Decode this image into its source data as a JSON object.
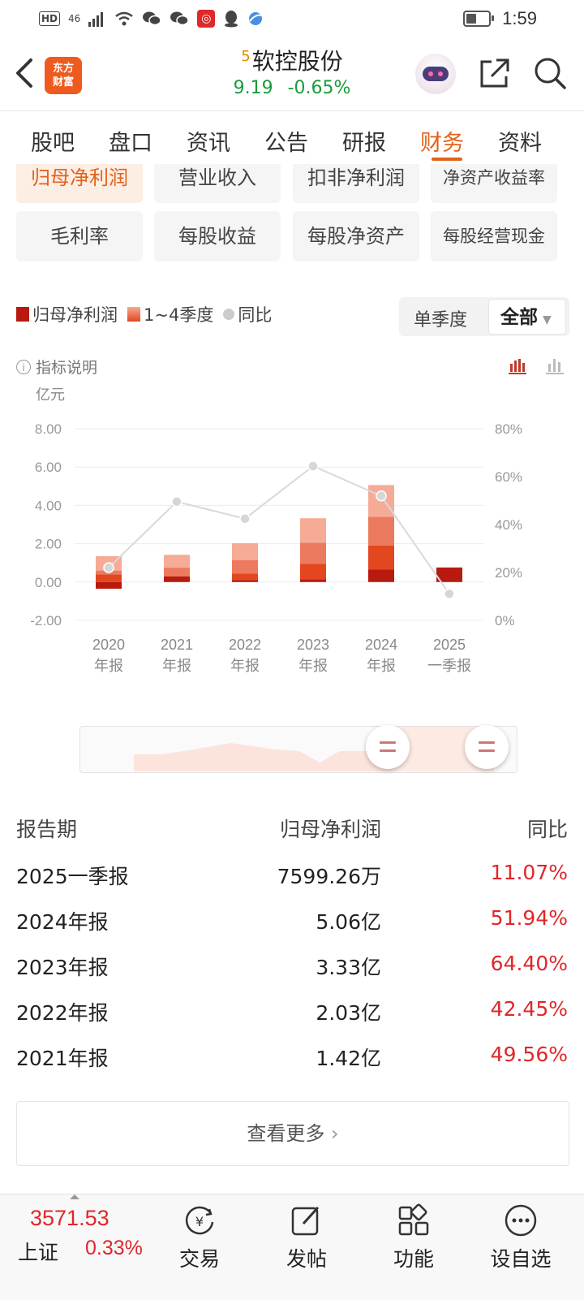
{
  "status_bar": {
    "hd": "HD",
    "network": "46",
    "time": "1:59",
    "battery_level": 0.45
  },
  "header": {
    "logo_line1": "东方",
    "logo_line2": "财富",
    "stock_superscript": "5",
    "stock_name": "软控股份",
    "price": "9.19",
    "change_pct": "-0.65%"
  },
  "tabs": [
    {
      "label": "股吧"
    },
    {
      "label": "盘口"
    },
    {
      "label": "资讯"
    },
    {
      "label": "公告"
    },
    {
      "label": "研报"
    },
    {
      "label": "财务",
      "active": true
    },
    {
      "label": "资料"
    }
  ],
  "metric_chips": [
    {
      "label": "归母净利润",
      "active": true
    },
    {
      "label": "营业收入"
    },
    {
      "label": "扣非净利润"
    },
    {
      "label": "净资产收益率"
    },
    {
      "label": "毛利率"
    },
    {
      "label": "每股收益"
    },
    {
      "label": "每股净资产"
    },
    {
      "label": "每股经营现金"
    }
  ],
  "legend": {
    "series1": "归母净利润",
    "series2": "1~4季度",
    "series3": "同比"
  },
  "period_toggle": {
    "option1": "单季度",
    "option2": "全部",
    "selected": "全部"
  },
  "indicator_note": "指标说明",
  "colors": {
    "accent": "#e2621b",
    "up_red": "#e0262b",
    "down_green": "#1a9b3c",
    "q1": "#b81a10",
    "q2": "#e2471f",
    "q3": "#ec7a5e",
    "q4": "#f6ab96",
    "line": "#d9d9d9"
  },
  "chart_data": {
    "type": "bar",
    "stacked": true,
    "y_unit": "亿元",
    "ylim": [
      -2,
      8
    ],
    "y_ticks": [
      "8.00",
      "6.00",
      "4.00",
      "2.00",
      "0.00",
      "-2.00"
    ],
    "y2_ticks": [
      "80%",
      "60%",
      "40%",
      "20%",
      "0%"
    ],
    "y2lim": [
      0,
      80
    ],
    "categories": [
      {
        "l1": "2020",
        "l2": "年报"
      },
      {
        "l1": "2021",
        "l2": "年报"
      },
      {
        "l1": "2022",
        "l2": "年报"
      },
      {
        "l1": "2023",
        "l2": "年报"
      },
      {
        "l1": "2024",
        "l2": "年报"
      },
      {
        "l1": "2025",
        "l2": "一季报"
      }
    ],
    "series": [
      {
        "values": [
          -0.35,
          0.3,
          0.1,
          0.15,
          0.65,
          0.76
        ]
      },
      {
        "values": [
          0.4,
          0.0,
          0.35,
          0.8,
          1.25,
          0
        ]
      },
      {
        "values": [
          0.2,
          0.45,
          0.7,
          1.1,
          1.5,
          0
        ]
      },
      {
        "values": [
          0.75,
          0.67,
          0.88,
          1.28,
          1.66,
          0
        ]
      }
    ],
    "yoy_pct": [
      22,
      49.56,
      42.45,
      64.4,
      51.94,
      11.07
    ],
    "grid": true
  },
  "table": {
    "headers": [
      "报告期",
      "归母净利润",
      "同比"
    ],
    "rows": [
      [
        "2025一季报",
        "7599.26万",
        "11.07%"
      ],
      [
        "2024年报",
        "5.06亿",
        "51.94%"
      ],
      [
        "2023年报",
        "3.33亿",
        "64.40%"
      ],
      [
        "2022年报",
        "2.03亿",
        "42.45%"
      ],
      [
        "2021年报",
        "1.42亿",
        "49.56%"
      ]
    ]
  },
  "more_button": "查看更多",
  "bottom_bar": {
    "index_value": "3571.53",
    "index_name": "上证",
    "index_change": "0.33%",
    "nav": [
      {
        "label": "交易",
        "icon": "trade-icon"
      },
      {
        "label": "发帖",
        "icon": "post-icon"
      },
      {
        "label": "功能",
        "icon": "apps-icon"
      },
      {
        "label": "设自选",
        "icon": "more-icon"
      }
    ]
  }
}
